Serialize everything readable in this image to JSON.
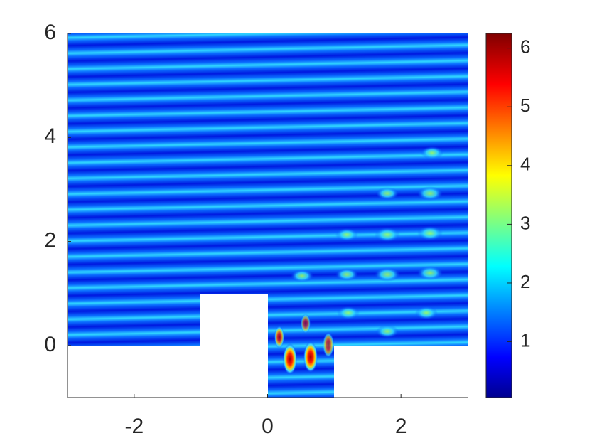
{
  "chart_data": {
    "type": "heatmap",
    "colormap": "jet",
    "xlim": [
      -3,
      3
    ],
    "ylim": [
      -1,
      6
    ],
    "xticks": [
      -2,
      0,
      2
    ],
    "yticks": [
      0,
      2,
      4,
      6
    ],
    "clim": [
      0.05,
      6.25
    ],
    "cticks": [
      1,
      2,
      3,
      4,
      5,
      6
    ]
  }
}
